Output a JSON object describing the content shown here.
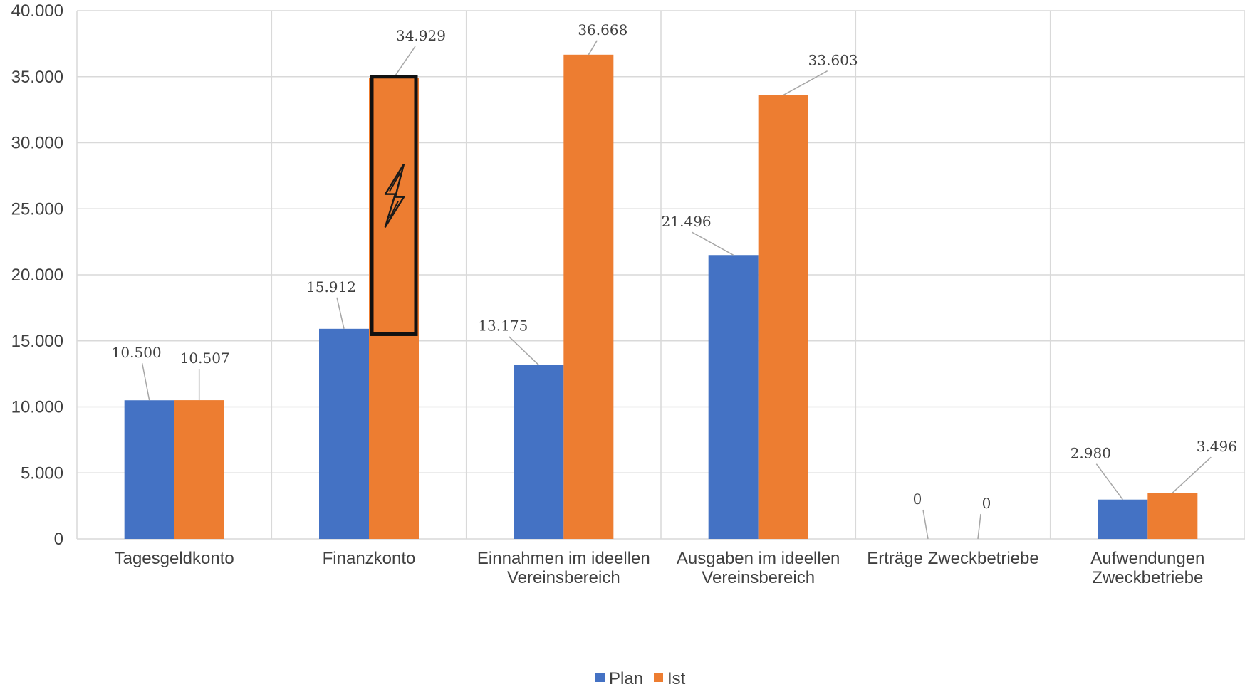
{
  "chart_data": {
    "type": "bar",
    "title": "",
    "xlabel": "",
    "ylabel": "",
    "ylim": [
      0,
      40000
    ],
    "yticks": [
      0,
      5000,
      10000,
      15000,
      20000,
      25000,
      30000,
      35000,
      40000
    ],
    "ytick_labels": [
      "0",
      "5.000",
      "10.000",
      "15.000",
      "20.000",
      "25.000",
      "30.000",
      "35.000",
      "40.000"
    ],
    "categories": [
      [
        "Tagesgeldkonto"
      ],
      [
        "Finanzkonto"
      ],
      [
        "Einnahmen im ideellen",
        "Vereinsbereich"
      ],
      [
        "Ausgaben im ideellen",
        "Vereinsbereich"
      ],
      [
        "Erträge Zweckbetriebe"
      ],
      [
        "Aufwendungen",
        "Zweckbetriebe"
      ]
    ],
    "series": [
      {
        "name": "Plan",
        "color": "#4472c4",
        "values": [
          10500,
          15912,
          13175,
          21496,
          0,
          2980
        ],
        "labels": [
          "10.500",
          "15.912",
          "13.175",
          "21.496",
          "0",
          "2.980"
        ]
      },
      {
        "name": "Ist",
        "color": "#ed7d31",
        "values": [
          10507,
          34929,
          36668,
          33603,
          0,
          3496
        ],
        "labels": [
          "10.507",
          "34.929",
          "36.668",
          "33.603",
          "0",
          "3.496"
        ]
      }
    ],
    "grid": true,
    "legend": "bottom",
    "annotations": [
      {
        "type": "highlight-box",
        "target": "Finanzkonto / Ist",
        "range": [
          15500,
          35000
        ],
        "icon": "lightning-bolt-icon"
      }
    ]
  }
}
